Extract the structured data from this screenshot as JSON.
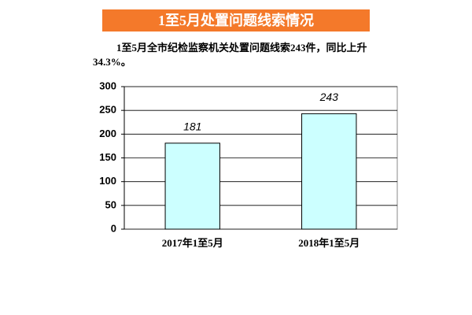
{
  "chart_data": {
    "type": "bar",
    "title": "1至5月处置问题线索情况",
    "subtitle": "1至5月全市纪检监察机关处置问题线索243件，同比上升34.3%。",
    "categories": [
      "2017年1至5月",
      "2018年1至5月"
    ],
    "values": [
      181,
      243
    ],
    "color": "#ccffff",
    "ylim": [
      0,
      300
    ],
    "yticks": [
      0,
      50,
      100,
      150,
      200,
      250,
      300
    ],
    "grid": true
  }
}
